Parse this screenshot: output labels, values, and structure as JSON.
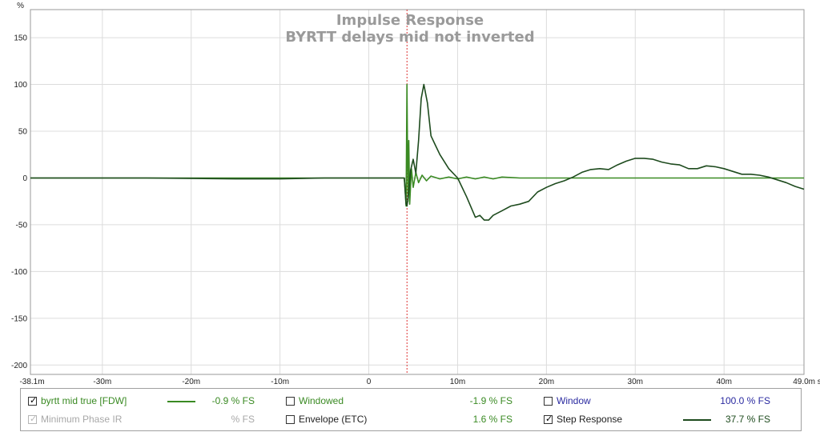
{
  "chart_data": {
    "type": "line",
    "title": "Impulse Response",
    "subtitle": "BYRTT delays mid not inverted",
    "xlabel": "",
    "ylabel": "",
    "xlim": [
      -38.1,
      49.0
    ],
    "ylim": [
      -210,
      180
    ],
    "x_ticks": [
      {
        "v": -38.1,
        "t": "-38.1m"
      },
      {
        "v": -30,
        "t": "-30m"
      },
      {
        "v": -20,
        "t": "-20m"
      },
      {
        "v": -10,
        "t": "-10m"
      },
      {
        "v": 0,
        "t": "0"
      },
      {
        "v": 10,
        "t": "10m"
      },
      {
        "v": 20,
        "t": "20m"
      },
      {
        "v": 30,
        "t": "30m"
      },
      {
        "v": 40,
        "t": "40m"
      },
      {
        "v": 49.0,
        "t": "49.0m s"
      }
    ],
    "y_ticks": [
      {
        "v": 150,
        "t": "150"
      },
      {
        "v": 100,
        "t": "100"
      },
      {
        "v": 50,
        "t": "50"
      },
      {
        "v": 0,
        "t": "0"
      },
      {
        "v": -50,
        "t": "-50"
      },
      {
        "v": -100,
        "t": "-100"
      },
      {
        "v": -150,
        "t": "-150"
      },
      {
        "v": -200,
        "t": "-200"
      }
    ],
    "top_label": "%",
    "grid": true,
    "marker_x": 4.3,
    "marker_color": "#dd3333",
    "series": [
      {
        "name": "byrtt mid true [FDW]",
        "color": "#3a8a23",
        "x": [
          -38.1,
          -30,
          -20,
          -10,
          0,
          4.0,
          4.2,
          4.3,
          4.4,
          4.5,
          4.6,
          4.8,
          5.0,
          5.3,
          5.6,
          6.0,
          6.5,
          7.0,
          8.0,
          9.0,
          10,
          11,
          12,
          13,
          14,
          15,
          17,
          20,
          25,
          30,
          35,
          40,
          45,
          49.0
        ],
        "y": [
          0,
          0,
          0,
          0,
          0,
          0,
          -30,
          100,
          -25,
          40,
          -28,
          10,
          -10,
          6,
          -5,
          3,
          -3,
          2,
          -1,
          1,
          -1,
          1,
          -1,
          1,
          -1,
          1,
          0,
          0,
          0,
          0,
          0,
          0,
          0,
          0
        ]
      },
      {
        "name": "Step Response",
        "color": "#1e4b1e",
        "x": [
          -38.1,
          -25,
          -15,
          -10,
          -5,
          0,
          4.0,
          4.2,
          4.3,
          4.5,
          4.7,
          5.0,
          5.3,
          5.6,
          5.9,
          6.2,
          6.6,
          7.0,
          7.5,
          8.0,
          9.0,
          10,
          11,
          12,
          12.5,
          13,
          13.5,
          14,
          15,
          16,
          17,
          18,
          19,
          20,
          21,
          22,
          23,
          24,
          25,
          26,
          27,
          28,
          29,
          30,
          31,
          32,
          33,
          34,
          35,
          36,
          37,
          38,
          39,
          40,
          41,
          42,
          43,
          44,
          45,
          46,
          47,
          48,
          49.0
        ],
        "y": [
          0,
          0,
          -1,
          -1,
          0,
          0,
          0,
          -28,
          -30,
          -15,
          8,
          20,
          5,
          40,
          85,
          100,
          80,
          45,
          35,
          25,
          10,
          0,
          -20,
          -42,
          -40,
          -45,
          -45,
          -40,
          -35,
          -30,
          -28,
          -25,
          -15,
          -10,
          -6,
          -3,
          1,
          6,
          9,
          10,
          9,
          14,
          18,
          21,
          21,
          20,
          17,
          15,
          14,
          10,
          10,
          13,
          12,
          10,
          7,
          4,
          4,
          3,
          1,
          -2,
          -5,
          -9,
          -12
        ]
      }
    ]
  },
  "legend": {
    "row1": {
      "item1": {
        "label": "byrtt mid true [FDW]",
        "checked": true,
        "color": "#3a8a23",
        "value": "-0.9 % FS"
      },
      "item2": {
        "label": "Windowed",
        "checked": false,
        "color": "#3a8a23",
        "value": "-1.9 % FS"
      },
      "item3": {
        "label": "Window",
        "checked": false,
        "color": "#2a2aa0",
        "value": "100.0 % FS"
      }
    },
    "row2": {
      "item1": {
        "label": "Minimum Phase IR",
        "checked": true,
        "disabled": true,
        "color": "#a8a8a8",
        "value": "% FS"
      },
      "item2": {
        "label": "Envelope (ETC)",
        "checked": false,
        "color": "#222222",
        "value": "1.6 % FS"
      },
      "item3": {
        "label": "Step Response",
        "checked": true,
        "color": "#1e4b1e",
        "value": "37.7 % FS"
      }
    }
  }
}
